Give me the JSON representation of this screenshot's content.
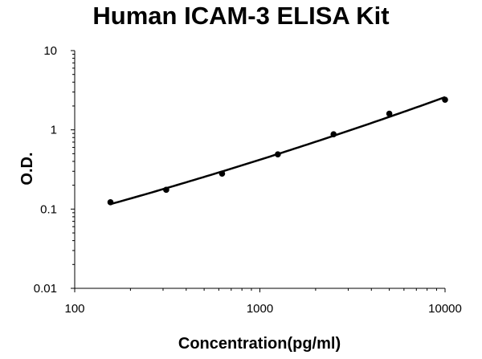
{
  "chart_data": {
    "type": "scatter",
    "title": "Human ICAM-3 ELISA Kit",
    "xlabel": "Concentration(pg/ml)",
    "ylabel": "O.D.",
    "x_scale": "log",
    "y_scale": "log",
    "xlim": [
      100,
      10000
    ],
    "ylim": [
      0.01,
      10
    ],
    "x_ticks": [
      "100",
      "1000",
      "10000"
    ],
    "y_ticks": [
      "0.01",
      "0.1",
      "1",
      "10"
    ],
    "grid": false,
    "legend": "none",
    "series": [
      {
        "x": [
          156,
          312,
          625,
          1250,
          2500,
          5000,
          10000
        ],
        "y": [
          0.122,
          0.175,
          0.28,
          0.49,
          0.88,
          1.6,
          2.4
        ],
        "fit": "smooth curve"
      }
    ],
    "colors": {
      "points": "#000000",
      "curve": "#000000",
      "axis": "#000000"
    }
  }
}
